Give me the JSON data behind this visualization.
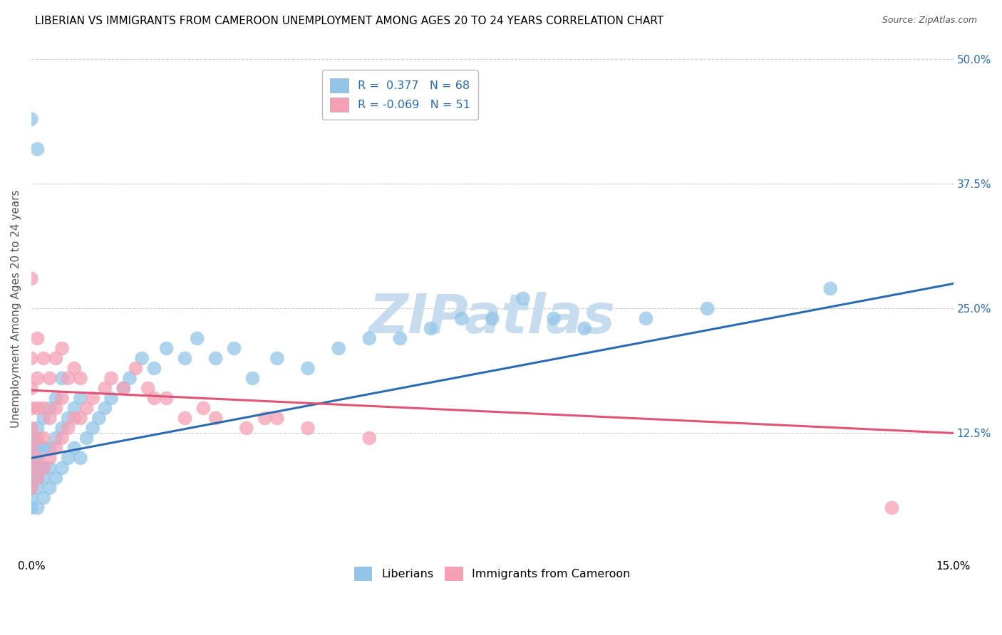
{
  "title": "LIBERIAN VS IMMIGRANTS FROM CAMEROON UNEMPLOYMENT AMONG AGES 20 TO 24 YEARS CORRELATION CHART",
  "source": "Source: ZipAtlas.com",
  "ylabel": "Unemployment Among Ages 20 to 24 years",
  "xlim": [
    0.0,
    0.15
  ],
  "ylim": [
    0.0,
    0.5
  ],
  "xtick_labels": [
    "0.0%",
    "15.0%"
  ],
  "ytick_labels": [
    "12.5%",
    "25.0%",
    "37.5%",
    "50.0%"
  ],
  "ytick_vals": [
    0.125,
    0.25,
    0.375,
    0.5
  ],
  "xtick_vals": [
    0.0,
    0.15
  ],
  "series": [
    {
      "name": "Liberians",
      "R": 0.377,
      "N": 68,
      "color": "#92C5E8",
      "line_color": "#2B6CB0",
      "x": [
        0.0,
        0.0,
        0.0,
        0.0,
        0.0,
        0.0,
        0.0,
        0.0,
        0.0,
        0.0,
        0.001,
        0.001,
        0.001,
        0.001,
        0.001,
        0.001,
        0.001,
        0.001,
        0.002,
        0.002,
        0.002,
        0.002,
        0.002,
        0.003,
        0.003,
        0.003,
        0.003,
        0.004,
        0.004,
        0.004,
        0.005,
        0.005,
        0.005,
        0.006,
        0.006,
        0.007,
        0.007,
        0.008,
        0.008,
        0.009,
        0.01,
        0.011,
        0.012,
        0.013,
        0.015,
        0.016,
        0.018,
        0.02,
        0.022,
        0.025,
        0.027,
        0.03,
        0.033,
        0.036,
        0.04,
        0.045,
        0.05,
        0.055,
        0.06,
        0.065,
        0.07,
        0.075,
        0.08,
        0.085,
        0.09,
        0.1,
        0.11,
        0.13
      ],
      "y": [
        0.05,
        0.06,
        0.07,
        0.08,
        0.08,
        0.09,
        0.1,
        0.11,
        0.12,
        0.44,
        0.05,
        0.07,
        0.08,
        0.09,
        0.1,
        0.11,
        0.13,
        0.41,
        0.06,
        0.08,
        0.09,
        0.11,
        0.14,
        0.07,
        0.09,
        0.11,
        0.15,
        0.08,
        0.12,
        0.16,
        0.09,
        0.13,
        0.18,
        0.1,
        0.14,
        0.11,
        0.15,
        0.1,
        0.16,
        0.12,
        0.13,
        0.14,
        0.15,
        0.16,
        0.17,
        0.18,
        0.2,
        0.19,
        0.21,
        0.2,
        0.22,
        0.2,
        0.21,
        0.18,
        0.2,
        0.19,
        0.21,
        0.22,
        0.22,
        0.23,
        0.24,
        0.24,
        0.26,
        0.24,
        0.23,
        0.24,
        0.25,
        0.27
      ]
    },
    {
      "name": "Immigrants from Cameroon",
      "R": -0.069,
      "N": 51,
      "color": "#F4A0B5",
      "line_color": "#E05575",
      "x": [
        0.0,
        0.0,
        0.0,
        0.0,
        0.0,
        0.0,
        0.0,
        0.0,
        0.001,
        0.001,
        0.001,
        0.001,
        0.001,
        0.001,
        0.002,
        0.002,
        0.002,
        0.002,
        0.003,
        0.003,
        0.003,
        0.004,
        0.004,
        0.004,
        0.005,
        0.005,
        0.005,
        0.006,
        0.006,
        0.007,
        0.007,
        0.008,
        0.008,
        0.009,
        0.01,
        0.012,
        0.013,
        0.015,
        0.017,
        0.019,
        0.02,
        0.022,
        0.025,
        0.028,
        0.03,
        0.035,
        0.038,
        0.04,
        0.045,
        0.055,
        0.14
      ],
      "y": [
        0.07,
        0.09,
        0.11,
        0.13,
        0.15,
        0.17,
        0.2,
        0.28,
        0.08,
        0.1,
        0.12,
        0.15,
        0.18,
        0.22,
        0.09,
        0.12,
        0.15,
        0.2,
        0.1,
        0.14,
        0.18,
        0.11,
        0.15,
        0.2,
        0.12,
        0.16,
        0.21,
        0.13,
        0.18,
        0.14,
        0.19,
        0.14,
        0.18,
        0.15,
        0.16,
        0.17,
        0.18,
        0.17,
        0.19,
        0.17,
        0.16,
        0.16,
        0.14,
        0.15,
        0.14,
        0.13,
        0.14,
        0.14,
        0.13,
        0.12,
        0.05
      ]
    }
  ],
  "blue_line": {
    "x0": 0.0,
    "y0": 0.1,
    "x1": 0.15,
    "y1": 0.275
  },
  "pink_line": {
    "x0": 0.0,
    "y0": 0.168,
    "x1": 0.15,
    "y1": 0.125
  },
  "watermark": "ZIPatlas",
  "watermark_color": "#C8DCF0",
  "background_color": "#FFFFFF",
  "grid_color": "#CCCCCC",
  "title_fontsize": 11,
  "axis_label_fontsize": 11
}
